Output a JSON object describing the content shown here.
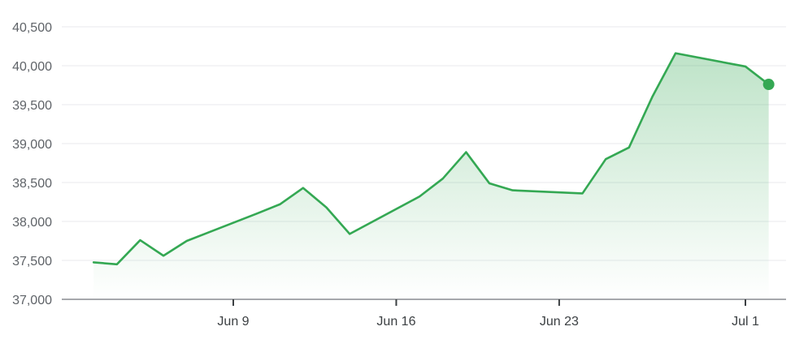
{
  "chart_data": {
    "type": "area",
    "title": "",
    "xlabel": "",
    "ylabel": "",
    "ylim": [
      37000,
      40500
    ],
    "yticks": [
      37000,
      37500,
      38000,
      38500,
      39000,
      39500,
      40000,
      40500
    ],
    "ytick_labels": [
      "37,000",
      "37,500",
      "38,000",
      "38,500",
      "39,000",
      "39,500",
      "40,000",
      "40,500"
    ],
    "xlim": [
      "2024-06-04",
      "2024-07-02"
    ],
    "xticks": [
      {
        "date": "2024-06-09",
        "label": "Jun 9"
      },
      {
        "date": "2024-06-16",
        "label": "Jun 16"
      },
      {
        "date": "2024-06-23",
        "label": "Jun 23"
      },
      {
        "date": "2024-07-01",
        "label": "Jul 1"
      }
    ],
    "grid": true,
    "line_color": "#34a853",
    "series": [
      {
        "x": [
          "2024-06-03",
          "2024-06-04",
          "2024-06-05",
          "2024-06-06",
          "2024-06-07",
          "2024-06-10",
          "2024-06-11",
          "2024-06-12",
          "2024-06-13",
          "2024-06-14",
          "2024-06-17",
          "2024-06-18",
          "2024-06-19",
          "2024-06-20",
          "2024-06-21",
          "2024-06-24",
          "2024-06-25",
          "2024-06-26",
          "2024-06-27",
          "2024-06-28",
          "2024-07-01",
          "2024-07-02"
        ],
        "values": [
          37475,
          37450,
          37760,
          37560,
          37750,
          38100,
          38220,
          38430,
          38180,
          37840,
          38320,
          38550,
          38890,
          38490,
          38400,
          38360,
          38800,
          38950,
          39600,
          40160,
          39990,
          39760
        ]
      }
    ]
  }
}
